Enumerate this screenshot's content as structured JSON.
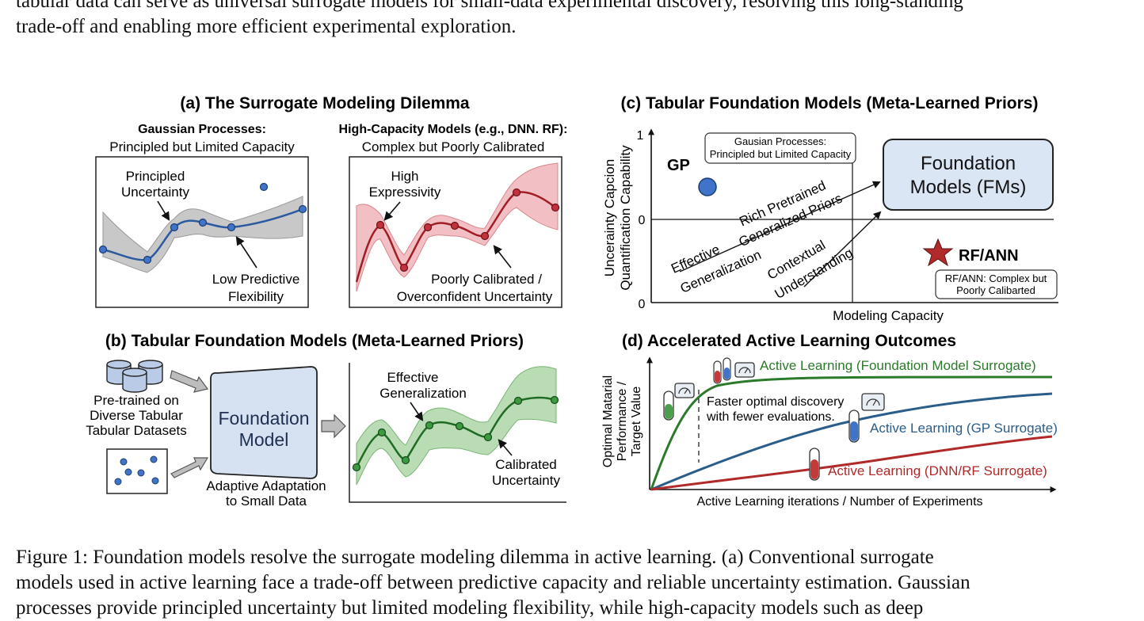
{
  "intro": {
    "line1": "tabular data can serve as universal surrogate models for small-data experimental discovery, resolving this long-standing",
    "line2": "trade-off and enabling more efficient experimental exploration."
  },
  "panel_a": {
    "title": "(a) The Surrogate Modeling Dilemma",
    "gp_header_1": "Gaussian Processes:",
    "gp_header_2": "Principled but Limited Capacity",
    "hc_header_1": "High-Capacity Models (e.g., DNN. RF):",
    "hc_header_2": "Complex but Poorly Calibrated",
    "principled_1": "Principled",
    "principled_2": "Uncertainty",
    "lowpred_1": "Low Predictive",
    "lowpred_2": "Flexibility",
    "highexp_1": "High",
    "highexp_2": "Expressivity",
    "poorly_1": "Poorly Calibrated /",
    "poorly_2": "Overconfident Uncertainty"
  },
  "panel_b": {
    "title": "(b) Tabular Foundation Models (Meta-Learned Priors)",
    "pretrained_1": "Pre-trained on",
    "pretrained_2": "Diverse Tabular",
    "pretrained_3": "Tabular Datasets",
    "fm_1": "Foundation",
    "fm_2": "Model",
    "adapt_1": "Adaptive Adaptation",
    "adapt_2": "to Small Data",
    "effgen_1": "Effective",
    "effgen_2": "Generalization",
    "calib_1": "Calibrated",
    "calib_2": "Uncertainty"
  },
  "panel_c": {
    "title": "(c) Tabular Foundation Models (Meta-Learned Priors)",
    "ylabel_1": "Uncerainty Capcion",
    "ylabel_2": "Quantification Capability",
    "tick_top": "1",
    "tick_mid": "0",
    "tick_bottom": "0",
    "xlabel": "Modeling Capacity",
    "gp_label": "GP",
    "gp_box_1": "Gausian Processes:",
    "gp_box_2": "Principled but Limited Capacity",
    "fm_box_1": "Foundation",
    "fm_box_2": "Models (FMs)",
    "rich_1": "Rich Pretrained",
    "rich_2": "Generalized Priors",
    "effgen_1": "Effective",
    "effgen_2": "Generalization",
    "context_1": "Contextual",
    "context_2": "Understanding",
    "rf_label": "RF/ANN",
    "rf_box_1": "RF/ANN: Complex but",
    "rf_box_2": "Poorly Calibarted",
    "colors": {
      "gp": "#3f74c8",
      "star": "#b02a2a",
      "fm_fill": "#dbe6f5"
    }
  },
  "panel_d": {
    "title": "(d) Accelerated Active Learning Outcomes",
    "ylabel_1": "Optimal Matarial",
    "ylabel_2": "Performance /",
    "ylabel_3": "Target Value",
    "xlabel": "Active Learning iterations / Number of Experiments",
    "faster_1": "Faster optimal discovery",
    "faster_2": "with fewer evaluations.",
    "fm_curve": "Active Learning (Foundation Model Surrogate)",
    "gp_curve": "Active Learning (GP Surrogate)",
    "dnn_curve": "Active Learning (DNN/RF Surrogate)",
    "colors": {
      "fm": "#2b7a2b",
      "gp": "#2a5d8a",
      "dnn": "#b02a2a"
    }
  },
  "caption": {
    "line1": "Figure 1: Foundation models resolve the surrogate modeling dilemma in active learning. (a) Conventional surrogate",
    "line2": "models used in active learning face a trade-off between predictive capacity and reliable uncertainty estimation. Gaussian",
    "line3": "processes provide principled uncertainty but limited modeling flexibility, while high-capacity models such as deep"
  }
}
